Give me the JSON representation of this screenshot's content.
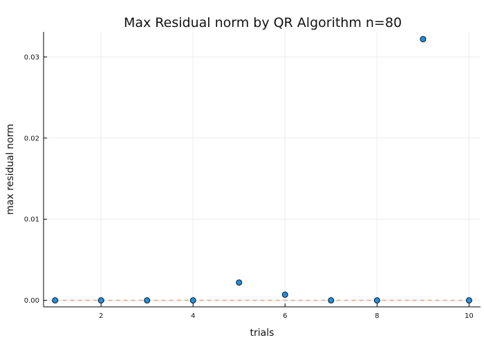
{
  "chart_data": {
    "type": "scatter",
    "title": "Max Residual norm by QR Algorithm  n=80",
    "xlabel": "trials",
    "ylabel": "max residual norm",
    "xlim": [
      0.75,
      10.25
    ],
    "ylim": [
      -0.0008,
      0.0331
    ],
    "x_ticks": [
      2,
      4,
      6,
      8,
      10
    ],
    "x_tick_labels": [
      "2",
      "4",
      "6",
      "8",
      "10"
    ],
    "y_ticks": [
      0,
      0.01,
      0.02,
      0.03
    ],
    "y_tick_labels": [
      "0.00",
      "0.01",
      "0.02",
      "0.03"
    ],
    "grid": true,
    "legend": "none",
    "series": [
      {
        "type": "scatter",
        "color": "#1f8fe0",
        "x": [
          1,
          2,
          3,
          4,
          5,
          6,
          7,
          8,
          9,
          10
        ],
        "y": [
          0.0,
          0.0,
          0.0,
          0.0,
          0.0022,
          0.0007,
          0.0,
          0.0,
          0.0322,
          0.0
        ]
      },
      {
        "type": "line",
        "style": "dashed",
        "color": "#e6a88a",
        "x": [
          1,
          10
        ],
        "y": [
          0.0,
          0.0
        ]
      }
    ]
  }
}
